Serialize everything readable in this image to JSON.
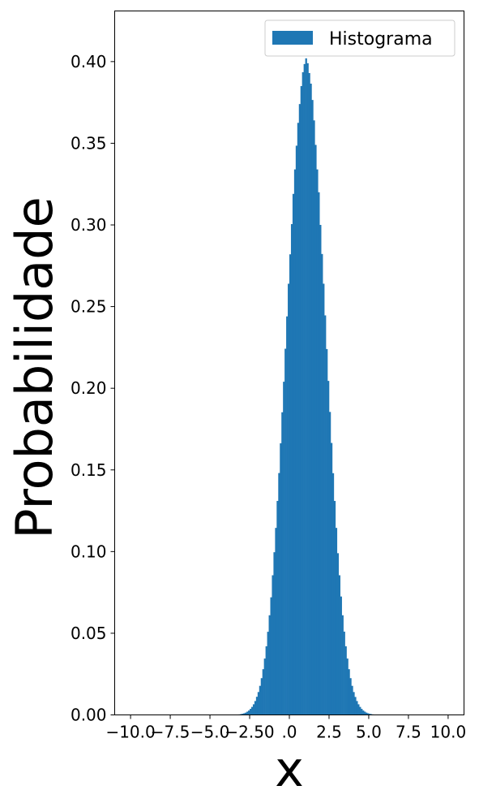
{
  "chart_data": {
    "type": "bar",
    "title": "",
    "xlabel": "x",
    "ylabel": "Probabilidade",
    "xlim": [
      -11.0,
      11.0
    ],
    "ylim": [
      0.0,
      0.431
    ],
    "grid": false,
    "legend": {
      "placement": "top-right",
      "entries": [
        "Histograma"
      ]
    },
    "x_ticks": [
      -10.0,
      -7.5,
      -5.0,
      -2.5,
      0.0,
      2.5,
      5.0,
      7.5,
      10.0
    ],
    "x_tick_labels": [
      "−10.0",
      "−7.5",
      "−5.0",
      "−2.50",
      ".0",
      "2.5",
      "5.0",
      "7.5",
      "10.0"
    ],
    "y_ticks": [
      0.0,
      0.05,
      0.1,
      0.15,
      0.2,
      0.25,
      0.3,
      0.35,
      0.4
    ],
    "y_tick_labels": [
      "0.00",
      "0.05",
      "0.10",
      "0.15",
      "0.20",
      "0.25",
      "0.30",
      "0.35",
      "0.40"
    ],
    "series": [
      {
        "name": "Histograma",
        "color": "#1f77b4",
        "bin_start": -10.0,
        "bin_width": 0.1,
        "values": [
          0,
          0,
          0,
          0,
          0,
          0,
          0,
          0,
          0,
          0,
          0,
          0,
          0,
          0,
          0,
          0,
          0,
          0,
          0,
          0,
          0,
          0,
          0,
          0,
          0,
          0,
          0,
          0,
          0,
          0,
          0,
          0,
          0,
          0,
          0,
          0,
          0,
          0,
          0,
          0,
          0,
          0,
          0,
          0,
          0,
          0,
          0,
          0,
          0,
          0,
          0,
          0,
          0,
          0,
          0,
          0,
          0,
          0,
          0,
          0,
          0,
          0,
          0,
          0,
          0,
          0.0001,
          0.0002,
          0.0002,
          0.0003,
          0.0005,
          0.0007,
          0.001,
          0.0014,
          0.002,
          0.0027,
          0.0037,
          0.0049,
          0.0065,
          0.0085,
          0.0111,
          0.014,
          0.0178,
          0.0225,
          0.028,
          0.0345,
          0.042,
          0.0509,
          0.061,
          0.072,
          0.0855,
          0.0996,
          0.1145,
          0.131,
          0.1481,
          0.1663,
          0.1853,
          0.204,
          0.2242,
          0.244,
          0.264,
          0.282,
          0.3005,
          0.319,
          0.334,
          0.3485,
          0.3625,
          0.374,
          0.385,
          0.3935,
          0.3985,
          0.402,
          0.399,
          0.393,
          0.3865,
          0.3765,
          0.364,
          0.349,
          0.334,
          0.32,
          0.3,
          0.2822,
          0.264,
          0.2446,
          0.224,
          0.2045,
          0.1855,
          0.1665,
          0.148,
          0.131,
          0.1145,
          0.099,
          0.0855,
          0.0725,
          0.061,
          0.051,
          0.042,
          0.0345,
          0.028,
          0.0225,
          0.0178,
          0.014,
          0.011,
          0.0085,
          0.0065,
          0.0049,
          0.0037,
          0.0027,
          0.002,
          0.0014,
          0.001,
          0.0007,
          0.0005,
          0.0003,
          0.0002,
          0.0002,
          0.0001,
          0,
          0,
          0,
          0,
          0,
          0,
          0,
          0,
          0,
          0,
          0,
          0,
          0,
          0,
          0,
          0,
          0,
          0,
          0,
          0,
          0,
          0,
          0,
          0,
          0,
          0,
          0,
          0,
          0,
          0,
          0,
          0,
          0,
          0,
          0,
          0,
          0,
          0,
          0,
          0,
          0,
          0,
          0,
          0,
          0,
          0,
          0,
          0,
          0,
          0,
          0,
          0,
          0,
          0,
          0,
          0,
          0,
          0,
          0,
          0,
          0,
          0,
          0,
          0,
          0,
          0
        ]
      }
    ]
  }
}
